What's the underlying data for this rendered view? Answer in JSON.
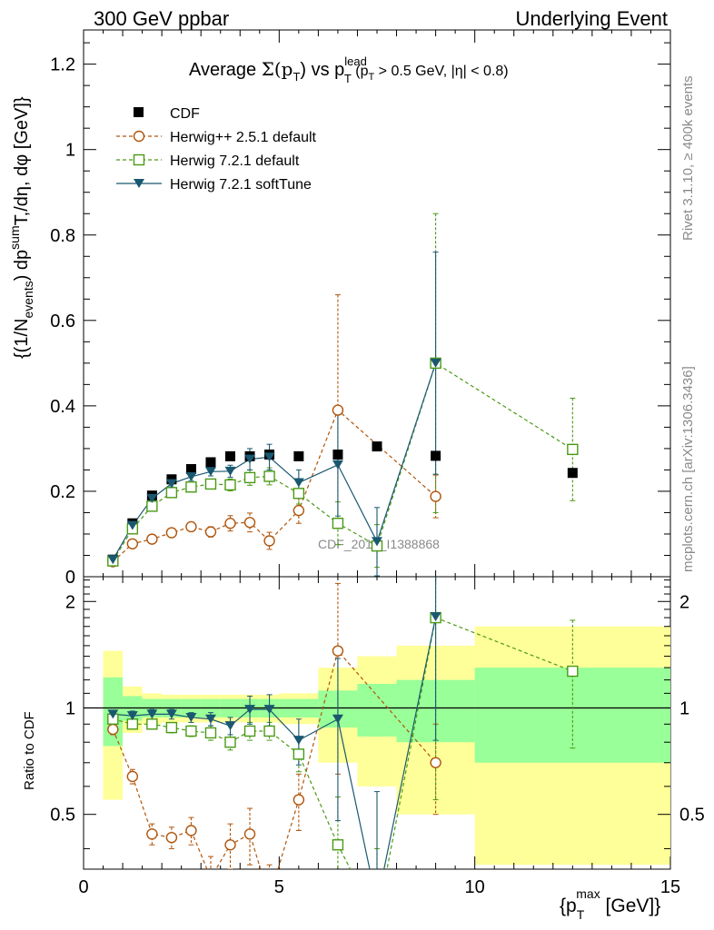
{
  "header": {
    "left": "300 GeV ppbar",
    "right": "Underlying Event"
  },
  "side_labels": {
    "rivet": "Rivet 3.1.10, ≥ 400k events",
    "mcplots": "mcplots.cern.ch [arXiv:1306.3436]"
  },
  "chart_data": {
    "type": "scatter",
    "title": {
      "prefix": "Average ",
      "sigma": "Σ(p",
      "sigma_sub": "T",
      "mid": ") vs p",
      "lead_sup": "lead",
      "lead_sub": "T",
      "cut_a": " (p",
      "cut_sub": "T",
      "cut_b": " > 0.5 GeV, |η| < 0.8)"
    },
    "watermark": "CDF_2015_I1388868",
    "ylabel": {
      "a": "{(1/N",
      "a_sub": "events",
      "b": ") dp",
      "b_sup": "sum",
      "c": "T",
      "d": ",/dη, dφ [GeV]}"
    },
    "xlabel": {
      "a": "{p",
      "sub": "T",
      "sup": "max",
      "b": " [GeV]}"
    },
    "ratio_ylabel": "Ratio to CDF",
    "xlim": [
      0,
      15
    ],
    "ylim": [
      0,
      1.28
    ],
    "ratio_ylim": [
      0.35,
      2.35
    ],
    "x_ticks": [
      "0",
      "5",
      "10",
      "15"
    ],
    "y_ticks": [
      "0",
      "0.2",
      "0.4",
      "0.6",
      "0.8",
      "1",
      "1.2"
    ],
    "ratio_ticks": [
      "0.5",
      "1",
      "2"
    ],
    "bin_edges": [
      0.5,
      1,
      1.5,
      2,
      2.5,
      3,
      3.5,
      4,
      4.5,
      5,
      6,
      7,
      8,
      10,
      15
    ],
    "x": [
      0.75,
      1.25,
      1.75,
      2.25,
      2.75,
      3.25,
      3.75,
      4.25,
      4.75,
      5.5,
      6.5,
      7.5,
      9,
      12.5
    ],
    "data": {
      "name": "CDF",
      "color": "#000000",
      "values": [
        0.04,
        0.125,
        0.19,
        0.228,
        0.252,
        0.268,
        0.282,
        0.282,
        0.286,
        0.282,
        0.286,
        0.305,
        0.283,
        0.243
      ],
      "band_inner": [
        0.22,
        0.08,
        0.06,
        0.06,
        0.06,
        0.06,
        0.06,
        0.06,
        0.06,
        0.06,
        0.12,
        0.17,
        0.2,
        0.3
      ],
      "band_outer": [
        0.45,
        0.15,
        0.1,
        0.09,
        0.09,
        0.09,
        0.09,
        0.09,
        0.09,
        0.1,
        0.3,
        0.4,
        0.5,
        0.7
      ]
    },
    "series": [
      {
        "name": "Herwig++ 2.5.1 default",
        "color": "#b0550c",
        "marker": "circle",
        "dash": "4,3",
        "values": [
          0.035,
          0.077,
          0.088,
          0.103,
          0.117,
          0.105,
          0.125,
          0.127,
          0.084,
          0.155,
          0.39,
          null,
          0.188,
          null
        ],
        "errors": [
          0.005,
          0.008,
          0.008,
          0.01,
          0.01,
          0.012,
          0.018,
          0.022,
          0.02,
          0.03,
          0.27,
          null,
          0.05,
          null
        ],
        "ratio": [
          0.87,
          0.64,
          0.44,
          0.43,
          0.45,
          0.33,
          0.41,
          0.44,
          0.29,
          0.55,
          1.45,
          null,
          0.7,
          null
        ],
        "ratio_errors": [
          0.03,
          0.03,
          0.03,
          0.03,
          0.04,
          0.05,
          0.06,
          0.08,
          0.07,
          0.1,
          0.8,
          null,
          0.2,
          null
        ]
      },
      {
        "name": "Herwig 7.2.1 default",
        "color": "#4a9a14",
        "marker": "square",
        "dash": "4,3",
        "values": [
          0.037,
          0.112,
          0.165,
          0.197,
          0.21,
          0.217,
          0.215,
          0.232,
          0.235,
          0.195,
          0.125,
          0.072,
          0.5,
          0.298
        ],
        "errors": [
          0.004,
          0.006,
          0.007,
          0.008,
          0.009,
          0.01,
          0.014,
          0.018,
          0.02,
          0.025,
          0.05,
          0.05,
          0.35,
          0.12
        ],
        "ratio": [
          0.93,
          0.9,
          0.9,
          0.88,
          0.86,
          0.85,
          0.8,
          0.86,
          0.86,
          0.74,
          0.41,
          0.25,
          1.8,
          1.27
        ],
        "ratio_errors": [
          0.02,
          0.03,
          0.03,
          0.03,
          0.03,
          0.04,
          0.04,
          0.05,
          0.05,
          0.08,
          0.15,
          0.15,
          1.25,
          0.5
        ]
      },
      {
        "name": "Herwig 7.2.1 softTune",
        "color": "#1a5870",
        "marker": "triangle",
        "dash": "",
        "values": [
          0.04,
          0.12,
          0.183,
          0.218,
          0.234,
          0.246,
          0.247,
          0.275,
          0.28,
          0.22,
          0.262,
          0.082,
          0.5,
          null
        ],
        "errors": [
          0.004,
          0.006,
          0.007,
          0.008,
          0.009,
          0.01,
          0.014,
          0.025,
          0.03,
          0.03,
          0.12,
          0.08,
          0.26,
          null
        ],
        "ratio": [
          0.96,
          0.95,
          0.96,
          0.96,
          0.94,
          0.93,
          0.89,
          0.99,
          0.99,
          0.81,
          0.93,
          0.28,
          1.81,
          null
        ],
        "ratio_errors": [
          0.02,
          0.03,
          0.03,
          0.03,
          0.03,
          0.04,
          0.05,
          0.09,
          0.1,
          0.12,
          0.45,
          0.3,
          1.0,
          null
        ]
      }
    ]
  }
}
